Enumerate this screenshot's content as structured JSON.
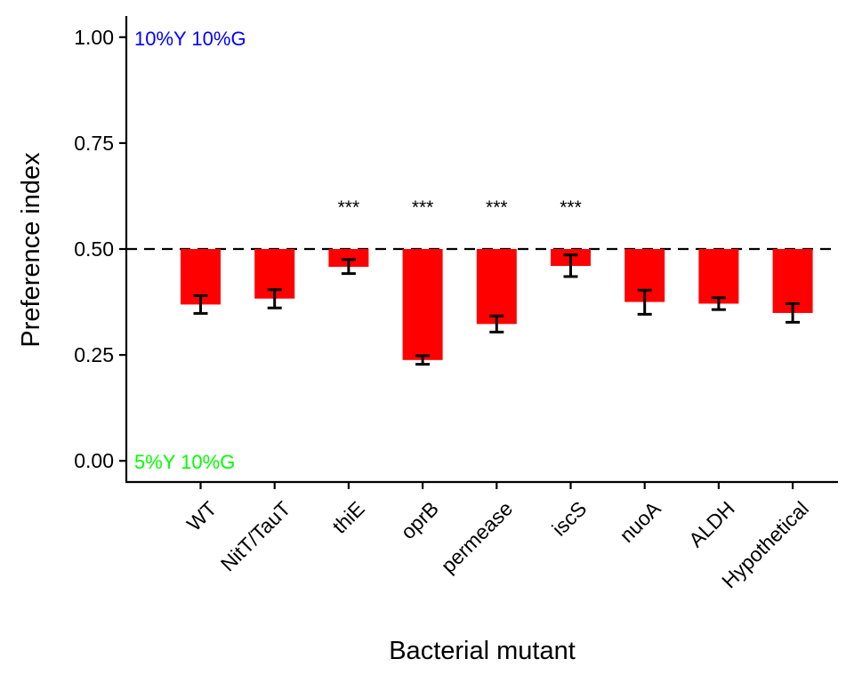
{
  "chart_data": {
    "type": "bar",
    "categories": [
      "WT",
      "NitT/TauT",
      "thiE",
      "oprB",
      "permease",
      "iscS",
      "nuoA",
      "ALDH",
      "Hypothetical"
    ],
    "values": [
      0.369,
      0.383,
      0.458,
      0.238,
      0.323,
      0.46,
      0.375,
      0.371,
      0.349
    ],
    "error_low": [
      0.348,
      0.361,
      0.442,
      0.228,
      0.304,
      0.435,
      0.346,
      0.357,
      0.327
    ],
    "error_high": [
      0.39,
      0.404,
      0.475,
      0.248,
      0.342,
      0.486,
      0.403,
      0.385,
      0.371
    ],
    "significance": [
      "",
      "",
      "***",
      "***",
      "***",
      "***",
      "",
      "",
      ""
    ],
    "baseline": 0.5,
    "reference_line": 0.5,
    "xlabel": "Bacterial mutant",
    "ylabel": "Preference index",
    "ylim": [
      -0.05,
      1.05
    ],
    "yticks": [
      0.0,
      0.25,
      0.5,
      0.75,
      1.0
    ],
    "ytick_labels": [
      "0.00",
      "0.25",
      "0.50",
      "0.75",
      "1.00"
    ],
    "bar_color": "#ff0000",
    "grid": false,
    "annotations": [
      {
        "text": "10%Y 10%G",
        "y": 1.0,
        "color": "#0000ff"
      },
      {
        "text": "5%Y 10%G",
        "y": 0.0,
        "color": "#00ff00"
      }
    ]
  }
}
